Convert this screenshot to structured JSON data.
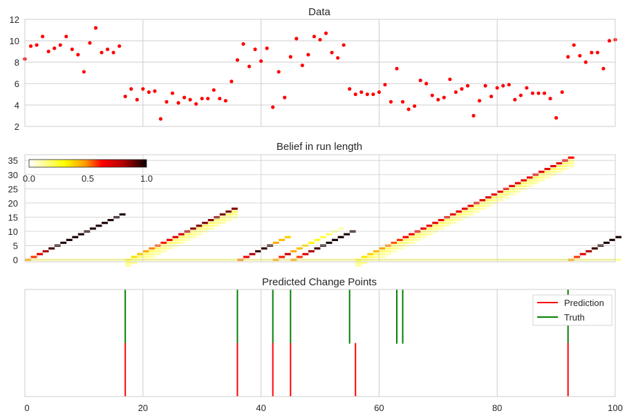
{
  "colors": {
    "grid": "#cccccc",
    "text": "#262626",
    "point": "#ff0000",
    "prediction": "#ff0000",
    "truth": "#008000"
  },
  "chart_data": [
    {
      "type": "scatter",
      "title": "Data",
      "xlim": [
        0,
        100
      ],
      "ylim": [
        2,
        12
      ],
      "yticks": [
        2,
        4,
        6,
        8,
        10,
        12
      ],
      "xticks": [
        0,
        20,
        40,
        60,
        80,
        100
      ],
      "xtick_labels_shown": false,
      "grid": true,
      "series": [
        {
          "x": [
            0,
            1,
            2,
            3,
            4,
            5,
            6,
            7,
            8,
            9,
            10,
            11,
            12,
            13,
            14,
            15,
            16,
            17,
            18,
            19,
            20,
            21,
            22,
            23,
            24,
            25,
            26,
            27,
            28,
            29,
            30,
            31,
            32,
            33,
            34,
            35,
            36,
            37,
            38,
            39,
            40,
            41,
            42,
            43,
            44,
            45,
            46,
            47,
            48,
            49,
            50,
            51,
            52,
            53,
            54,
            55,
            56,
            57,
            58,
            59,
            60,
            61,
            62,
            63,
            64,
            65,
            66,
            67,
            68,
            69,
            70,
            71,
            72,
            73,
            74,
            75,
            76,
            77,
            78,
            79,
            80,
            81,
            82,
            83,
            84,
            85,
            86,
            87,
            88,
            89,
            90,
            91,
            92,
            93,
            94,
            95,
            96,
            97,
            98,
            99,
            100
          ],
          "y": [
            8.3,
            9.5,
            9.6,
            10.4,
            9.0,
            9.3,
            9.6,
            10.4,
            9.2,
            8.7,
            7.1,
            9.8,
            11.2,
            8.9,
            9.2,
            8.9,
            9.5,
            4.8,
            5.5,
            4.5,
            5.5,
            5.2,
            5.3,
            2.7,
            4.3,
            5.1,
            4.2,
            4.7,
            4.5,
            4.1,
            4.6,
            4.6,
            5.4,
            4.6,
            4.4,
            6.2,
            8.2,
            9.7,
            7.6,
            9.2,
            8.1,
            9.3,
            3.8,
            7.1,
            4.7,
            8.5,
            10.2,
            7.7,
            8.7,
            10.4,
            10.1,
            10.7,
            8.9,
            8.4,
            9.6,
            5.5,
            5.0,
            5.2,
            5.0,
            5.0,
            5.2,
            5.9,
            4.3,
            7.4,
            4.3,
            3.6,
            3.9,
            6.3,
            6.0,
            4.9,
            4.5,
            4.7,
            6.4,
            5.2,
            5.5,
            5.8,
            3.0,
            4.4,
            5.8,
            4.8,
            5.6,
            5.8,
            5.9,
            4.5,
            4.9,
            5.6,
            5.1,
            5.1,
            5.1,
            4.6,
            2.8,
            5.2,
            8.5,
            9.6,
            8.6,
            8.0,
            8.9,
            8.9,
            7.4,
            10.0,
            10.1
          ]
        }
      ]
    },
    {
      "type": "heatmap",
      "title": "Belief in run length",
      "xlim": [
        0,
        100
      ],
      "ylim": [
        0,
        37
      ],
      "yticks": [
        0,
        5,
        10,
        15,
        20,
        25,
        30,
        35
      ],
      "colormap": "hot_r",
      "colorbar": {
        "min_label": "0.0",
        "mid_label": "0.5",
        "max_label": "1.0",
        "placement": "top-left"
      },
      "segments": [
        {
          "start": 0,
          "end": 17,
          "next_change": 17,
          "after_fade": 2
        },
        {
          "start": 17,
          "end": 36,
          "next_change": 36,
          "after_fade": 3
        },
        {
          "start": 36,
          "end": 45,
          "next_change": 42,
          "after_fade": 12
        },
        {
          "start": 42,
          "end": 56,
          "next_change": 45,
          "after_fade": 9
        },
        {
          "start": 45,
          "end": 56,
          "next_change": 56,
          "after_fade": 1
        },
        {
          "start": 56,
          "end": 93,
          "next_change": 92,
          "after_fade": 1
        },
        {
          "start": 92,
          "end": 101,
          "next_change": 101,
          "after_fade": 0
        }
      ]
    },
    {
      "type": "vlines",
      "title": "Predicted Change Points",
      "xlim": [
        0,
        100
      ],
      "xticks": [
        0,
        20,
        40,
        60,
        80,
        100
      ],
      "grid": true,
      "prediction": [
        17,
        36,
        42,
        45,
        56,
        92
      ],
      "truth": [
        17,
        36,
        42,
        45,
        55,
        63,
        64,
        92
      ],
      "legend": {
        "placement": "top-right",
        "entries": [
          "Prediction",
          "Truth"
        ]
      }
    }
  ],
  "labels": {
    "title1": "Data",
    "title2": "Belief in run length",
    "title3": "Predicted Change Points",
    "cbar_min": "0.0",
    "cbar_mid": "0.5",
    "cbar_max": "1.0",
    "legend_pred": "Prediction",
    "legend_truth": "Truth"
  }
}
